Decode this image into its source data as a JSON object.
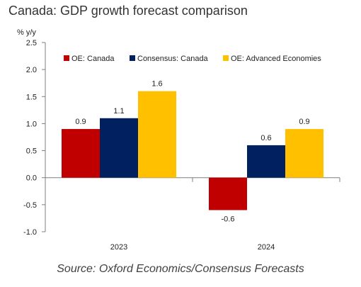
{
  "chart_data": {
    "type": "bar",
    "title": "Canada: GDP growth forecast comparison",
    "unit_label": "% y/y",
    "categories": [
      "2023",
      "2024"
    ],
    "series": [
      {
        "name": "OE: Canada",
        "values": [
          0.9,
          -0.6
        ],
        "color": "#c00000"
      },
      {
        "name": "Consensus: Canada",
        "values": [
          1.1,
          0.6
        ],
        "color": "#002060"
      },
      {
        "name": "OE: Advanced Economies",
        "values": [
          1.6,
          0.9
        ],
        "color": "#ffc000"
      }
    ],
    "ylim": [
      -1.0,
      2.5
    ],
    "yticks": [
      "2.5",
      "2.0",
      "1.5",
      "1.0",
      "0.5",
      "0.0",
      "-0.5",
      "-1.0"
    ],
    "ytick_values": [
      2.5,
      2.0,
      1.5,
      1.0,
      0.5,
      0.0,
      -0.5,
      -1.0
    ],
    "data_labels": [
      [
        "0.9",
        "-0.6"
      ],
      [
        "1.1",
        "0.6"
      ],
      [
        "1.6",
        "0.9"
      ]
    ],
    "legend_position": "top",
    "grid": false
  },
  "source": "Source: Oxford Economics/Consensus Forecasts"
}
